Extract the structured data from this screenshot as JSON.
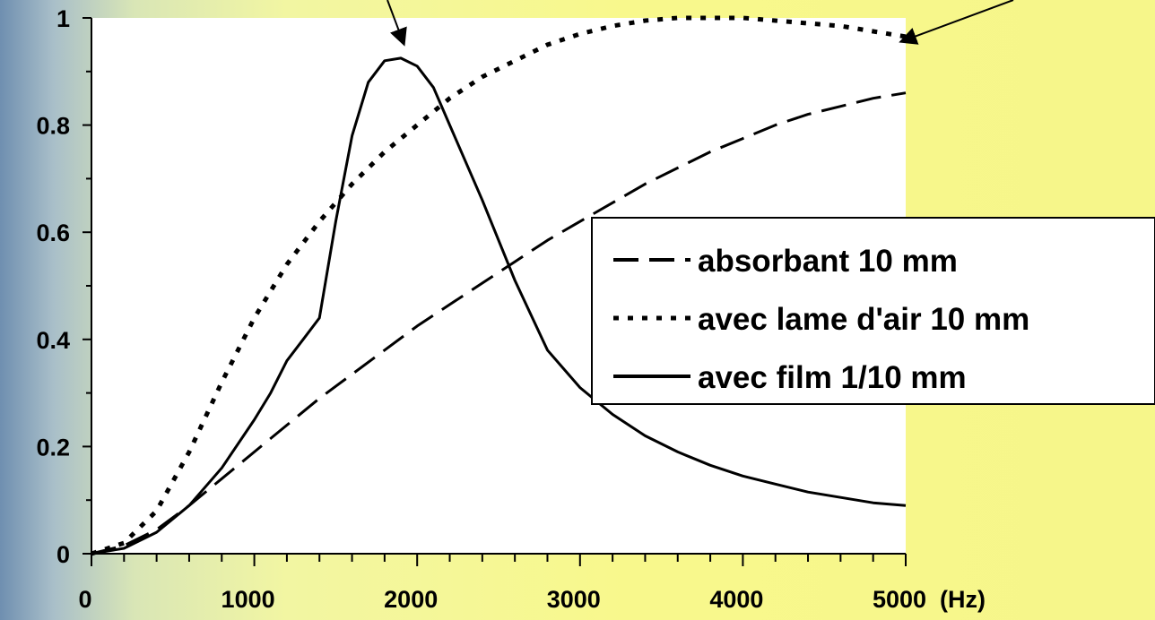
{
  "chart_data": {
    "type": "line",
    "title": "",
    "xlabel": "(Hz)",
    "ylabel": "",
    "xlim": [
      0,
      5000
    ],
    "ylim": [
      0,
      1
    ],
    "x_ticks": [
      "0",
      "1000",
      "2000",
      "3000",
      "4000",
      "5000"
    ],
    "y_ticks": [
      "0",
      "0.2",
      "0.4",
      "0.6",
      "0.8",
      "1"
    ],
    "grid": false,
    "legend_position": "right",
    "series": [
      {
        "name": "absorbant 10 mm",
        "style": "dashed",
        "color": "#000000",
        "points": [
          [
            0,
            0
          ],
          [
            200,
            0.015
          ],
          [
            400,
            0.045
          ],
          [
            600,
            0.09
          ],
          [
            800,
            0.14
          ],
          [
            1000,
            0.19
          ],
          [
            1200,
            0.24
          ],
          [
            1400,
            0.29
          ],
          [
            1600,
            0.335
          ],
          [
            1800,
            0.38
          ],
          [
            2000,
            0.425
          ],
          [
            2200,
            0.465
          ],
          [
            2400,
            0.505
          ],
          [
            2600,
            0.545
          ],
          [
            2800,
            0.585
          ],
          [
            3000,
            0.62
          ],
          [
            3200,
            0.655
          ],
          [
            3400,
            0.69
          ],
          [
            3600,
            0.72
          ],
          [
            3800,
            0.75
          ],
          [
            4000,
            0.775
          ],
          [
            4200,
            0.8
          ],
          [
            4400,
            0.82
          ],
          [
            4600,
            0.835
          ],
          [
            4800,
            0.85
          ],
          [
            5000,
            0.86
          ]
        ]
      },
      {
        "name": "avec lame d'air 10 mm",
        "style": "dotted",
        "color": "#000000",
        "points": [
          [
            0,
            0
          ],
          [
            200,
            0.02
          ],
          [
            400,
            0.08
          ],
          [
            600,
            0.19
          ],
          [
            800,
            0.32
          ],
          [
            1000,
            0.44
          ],
          [
            1200,
            0.54
          ],
          [
            1400,
            0.62
          ],
          [
            1600,
            0.69
          ],
          [
            1800,
            0.75
          ],
          [
            2000,
            0.8
          ],
          [
            2200,
            0.85
          ],
          [
            2400,
            0.89
          ],
          [
            2600,
            0.92
          ],
          [
            2800,
            0.95
          ],
          [
            3000,
            0.97
          ],
          [
            3200,
            0.985
          ],
          [
            3400,
            0.995
          ],
          [
            3600,
            1.0
          ],
          [
            3800,
            1.0
          ],
          [
            4000,
            1.0
          ],
          [
            4200,
            0.995
          ],
          [
            4400,
            0.99
          ],
          [
            4600,
            0.985
          ],
          [
            4800,
            0.975
          ],
          [
            5000,
            0.965
          ]
        ]
      },
      {
        "name": "avec film 1/10 mm",
        "style": "solid",
        "color": "#000000",
        "points": [
          [
            0,
            0
          ],
          [
            200,
            0.01
          ],
          [
            400,
            0.04
          ],
          [
            600,
            0.09
          ],
          [
            800,
            0.16
          ],
          [
            1000,
            0.25
          ],
          [
            1100,
            0.3
          ],
          [
            1200,
            0.36
          ],
          [
            1300,
            0.4
          ],
          [
            1400,
            0.44
          ],
          [
            1500,
            0.62
          ],
          [
            1600,
            0.78
          ],
          [
            1700,
            0.88
          ],
          [
            1800,
            0.92
          ],
          [
            1900,
            0.925
          ],
          [
            2000,
            0.91
          ],
          [
            2100,
            0.87
          ],
          [
            2200,
            0.8
          ],
          [
            2400,
            0.66
          ],
          [
            2600,
            0.51
          ],
          [
            2800,
            0.38
          ],
          [
            3000,
            0.31
          ],
          [
            3200,
            0.26
          ],
          [
            3400,
            0.22
          ],
          [
            3600,
            0.19
          ],
          [
            3800,
            0.165
          ],
          [
            4000,
            0.145
          ],
          [
            4200,
            0.13
          ],
          [
            4400,
            0.115
          ],
          [
            4600,
            0.105
          ],
          [
            4800,
            0.095
          ],
          [
            5000,
            0.09
          ]
        ]
      }
    ]
  }
}
